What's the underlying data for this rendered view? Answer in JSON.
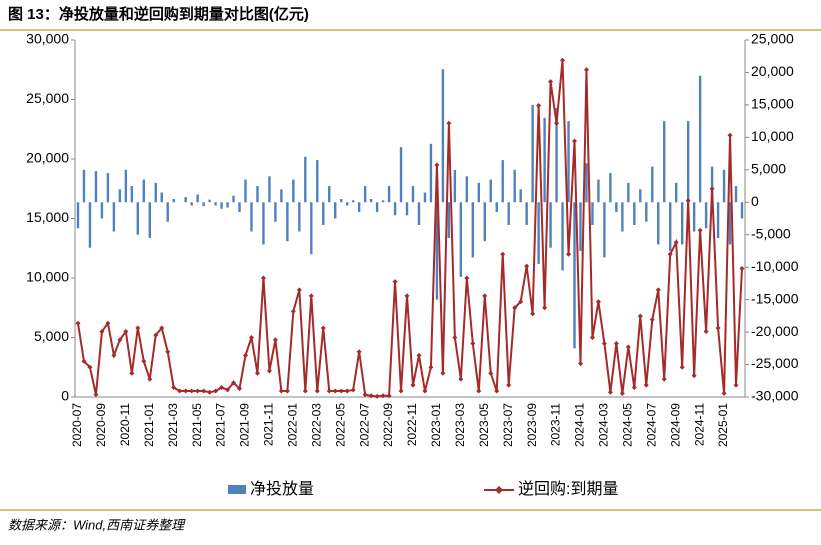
{
  "chart_data": {
    "type": "bar-line",
    "title": "图 13：净投放量和逆回购到期量对比图(亿元)",
    "source": "数据来源：Wind,西南证券整理",
    "categories": [
      "2020-07",
      null,
      null,
      null,
      "2020-09",
      null,
      null,
      null,
      "2020-11",
      null,
      null,
      null,
      "2021-01",
      null,
      null,
      null,
      "2021-03",
      null,
      null,
      null,
      "2021-05",
      null,
      null,
      null,
      "2021-07",
      null,
      null,
      null,
      "2021-09",
      null,
      null,
      null,
      "2021-11",
      null,
      null,
      null,
      "2022-01",
      null,
      null,
      null,
      "2022-03",
      null,
      null,
      null,
      "2022-05",
      null,
      null,
      null,
      "2022-07",
      null,
      null,
      null,
      "2022-09",
      null,
      null,
      null,
      "2022-11",
      null,
      null,
      null,
      "2023-01",
      null,
      null,
      null,
      "2023-03",
      null,
      null,
      null,
      "2023-05",
      null,
      null,
      null,
      "2023-07",
      null,
      null,
      null,
      "2023-09",
      null,
      null,
      null,
      "2023-11",
      null,
      null,
      null,
      "2024-01",
      null,
      null,
      null,
      "2024-03",
      null,
      null,
      null,
      "2024-05",
      null,
      null,
      null,
      "2024-07",
      null,
      null,
      null,
      "2024-09",
      null,
      null,
      null,
      "2024-11",
      null,
      null,
      null,
      "2025-01",
      null,
      null,
      null
    ],
    "series": [
      {
        "name": "净投放量",
        "type": "bar",
        "axis": "y2",
        "color": "#4f81bd",
        "values": [
          -4000,
          5000,
          -7000,
          4800,
          -2500,
          4500,
          -4500,
          2000,
          5000,
          2500,
          -5000,
          3500,
          -5500,
          3000,
          1500,
          -3000,
          500,
          0,
          800,
          -500,
          1200,
          -600,
          400,
          -500,
          -1000,
          -800,
          1000,
          -1500,
          3500,
          -4500,
          2500,
          -6500,
          4000,
          -3000,
          2000,
          -6000,
          3500,
          -4500,
          7000,
          -8000,
          6500,
          -3500,
          2500,
          -2500,
          500,
          -500,
          300,
          -1500,
          2500,
          500,
          -1500,
          300,
          2500,
          -2000,
          8500,
          -2000,
          2500,
          -3500,
          1500,
          9000,
          -15000,
          20500,
          -5500,
          5000,
          -11500,
          4000,
          -8500,
          3000,
          -6000,
          3500,
          -1500,
          6500,
          -3500,
          5000,
          2000,
          -3500,
          15000,
          -9500,
          13000,
          -7000,
          14500,
          -10500,
          12500,
          -22500,
          -7500,
          6000,
          -3500,
          3500,
          -8500,
          4500,
          -1500,
          -4500,
          3000,
          -3500,
          2000,
          -3000,
          5500,
          -6500,
          12500,
          -7500,
          3000,
          -6500,
          12500,
          -4500,
          19500,
          -4000,
          5500,
          -5500,
          5000,
          -6500,
          2500,
          -2500
        ]
      },
      {
        "name": "逆回购:到期量",
        "type": "line",
        "axis": "y",
        "color": "#a52a2a",
        "values": [
          6200,
          3000,
          2500,
          200,
          5500,
          6200,
          3500,
          4800,
          5500,
          2000,
          5800,
          3000,
          1500,
          5200,
          5800,
          3800,
          800,
          500,
          500,
          500,
          500,
          500,
          400,
          500,
          800,
          600,
          1200,
          700,
          3500,
          5000,
          2000,
          10000,
          2200,
          4800,
          500,
          500,
          7200,
          9000,
          500,
          8500,
          500,
          5800,
          500,
          500,
          500,
          500,
          600,
          3800,
          200,
          100,
          50,
          100,
          100,
          9700,
          500,
          8500,
          1000,
          3500,
          500,
          2500,
          19500,
          2000,
          23000,
          5000,
          1500,
          10000,
          4500,
          500,
          8500,
          2000,
          500,
          12000,
          1000,
          7500,
          8000,
          11000,
          7000,
          24500,
          7500,
          26500,
          23000,
          28300,
          12000,
          21500,
          2800,
          27500,
          5000,
          8000,
          4500,
          400,
          4500,
          300,
          4200,
          800,
          6800,
          1000,
          6500,
          9000,
          1500,
          12000,
          13000,
          2500,
          16500,
          1800,
          14000,
          5500,
          17500,
          5800,
          300,
          22000,
          1000,
          10800
        ]
      }
    ],
    "ylim": [
      0,
      30000
    ],
    "yticks": [
      0,
      {
        "value": 5000,
        "label": "5,000"
      },
      {
        "value": 10000,
        "label": "10,000"
      },
      {
        "value": 15000,
        "label": "15,000"
      },
      {
        "value": 20000,
        "label": "20,000"
      },
      {
        "value": 25000,
        "label": "25,000"
      },
      {
        "value": 30000,
        "label": "30,000"
      }
    ],
    "y2lim": [
      -30000,
      25000
    ],
    "y2ticks": [
      {
        "value": -30000,
        "label": "-30,000"
      },
      {
        "value": -25000,
        "label": "-25,000"
      },
      {
        "value": -20000,
        "label": "-20,000"
      },
      {
        "value": -15000,
        "label": "-15,000"
      },
      {
        "value": -10000,
        "label": "-10,000"
      },
      {
        "value": -5000,
        "label": "-5,000"
      },
      0,
      {
        "value": 5000,
        "label": "5,000"
      },
      {
        "value": 10000,
        "label": "10,000"
      },
      {
        "value": 15000,
        "label": "15,000"
      },
      {
        "value": 20000,
        "label": "20,000"
      },
      {
        "value": 25000,
        "label": "25,000"
      }
    ]
  }
}
